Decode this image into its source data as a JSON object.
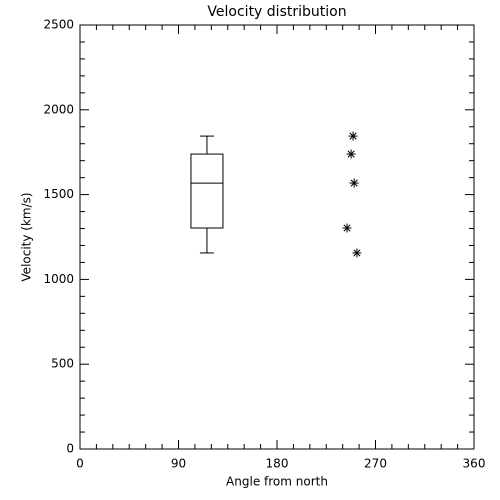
{
  "chart_data": {
    "type": "box",
    "title": "Velocity distribution",
    "xlabel": "Angle from north",
    "ylabel": "Velocity (km/s)",
    "xlim": [
      0,
      360
    ],
    "xticks": [
      0,
      90,
      180,
      270,
      360
    ],
    "xminor": 6,
    "ylim": [
      0,
      2500
    ],
    "yticks": [
      0,
      500,
      1000,
      1500,
      2000,
      2500
    ],
    "yminor": 5,
    "box": {
      "position": 116,
      "whislo": 1156,
      "q1": 1303,
      "median": 1568,
      "q3": 1739,
      "whishi": 1845
    },
    "points": {
      "x": [
        249.5,
        247.7,
        250.5,
        244,
        253
      ],
      "y": [
        1845,
        1739,
        1568,
        1303,
        1156
      ]
    },
    "color": "#000000"
  }
}
